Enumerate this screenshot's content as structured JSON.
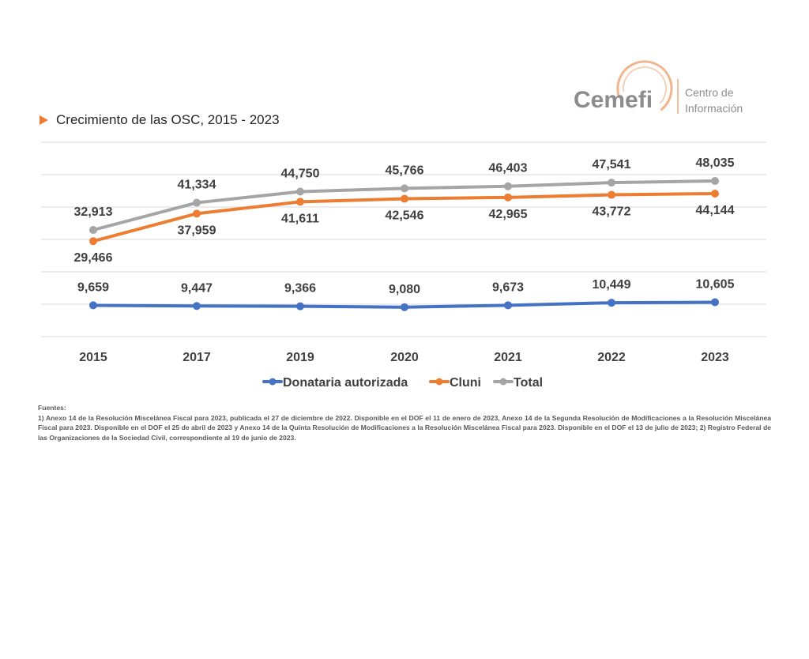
{
  "logo": {
    "brand": "Cemefi",
    "tagline_line1": "Centro de",
    "tagline_line2": "Información"
  },
  "colors": {
    "donataria": "#4472C4",
    "cluni": "#ED7D31",
    "total": "#A5A5A5",
    "logo_orange": "#F0A878",
    "logo_text": "#8C8C8C"
  },
  "chart_data": {
    "type": "line",
    "title": "Crecimiento de las OSC, 2015 - 2023",
    "categories": [
      "2015",
      "2017",
      "2019",
      "2020",
      "2021",
      "2022",
      "2023"
    ],
    "series": [
      {
        "name": "Donataria autorizada",
        "values": [
          9659,
          9447,
          9366,
          9080,
          9673,
          10449,
          10605
        ],
        "labels": [
          "9,659",
          "9,447",
          "9,366",
          "9,080",
          "9,673",
          "10,449",
          "10,605"
        ]
      },
      {
        "name": "Cluni",
        "values": [
          29466,
          37959,
          41611,
          42546,
          42965,
          43772,
          44144
        ],
        "labels": [
          "29,466",
          "37,959",
          "41,611",
          "42,546",
          "42,965",
          "43,772",
          "44,144"
        ]
      },
      {
        "name": "Total",
        "values": [
          32913,
          41334,
          44750,
          45766,
          46403,
          47541,
          48035
        ],
        "labels": [
          "32,913",
          "41,334",
          "44,750",
          "45,766",
          "46,403",
          "47,541",
          "48,035"
        ]
      }
    ],
    "ylim": [
      0,
      60000
    ],
    "grid": true,
    "legend": "bottom"
  },
  "sources": {
    "heading": "Fuentes:",
    "text": "1) Anexo 14 de la Resolución Miscelánea Fiscal para 2023, publicada el 27 de diciembre de 2022. Disponible en el DOF el 11 de enero de 2023, Anexo 14 de la Segunda Resolución de Modificaciones a la Resolución Miscelánea Fiscal para 2023. Disponible en el DOF el 25 de abril de 2023 y Anexo 14 de la Quinta Resolución de Modificaciones a la Resolución Miscelánea Fiscal para 2023. Disponible en el DOF el 13 de julio de 2023;  2) Registro Federal de las Organizaciones de la Sociedad Civil, correspondiente al 19 de junio de 2023."
  }
}
